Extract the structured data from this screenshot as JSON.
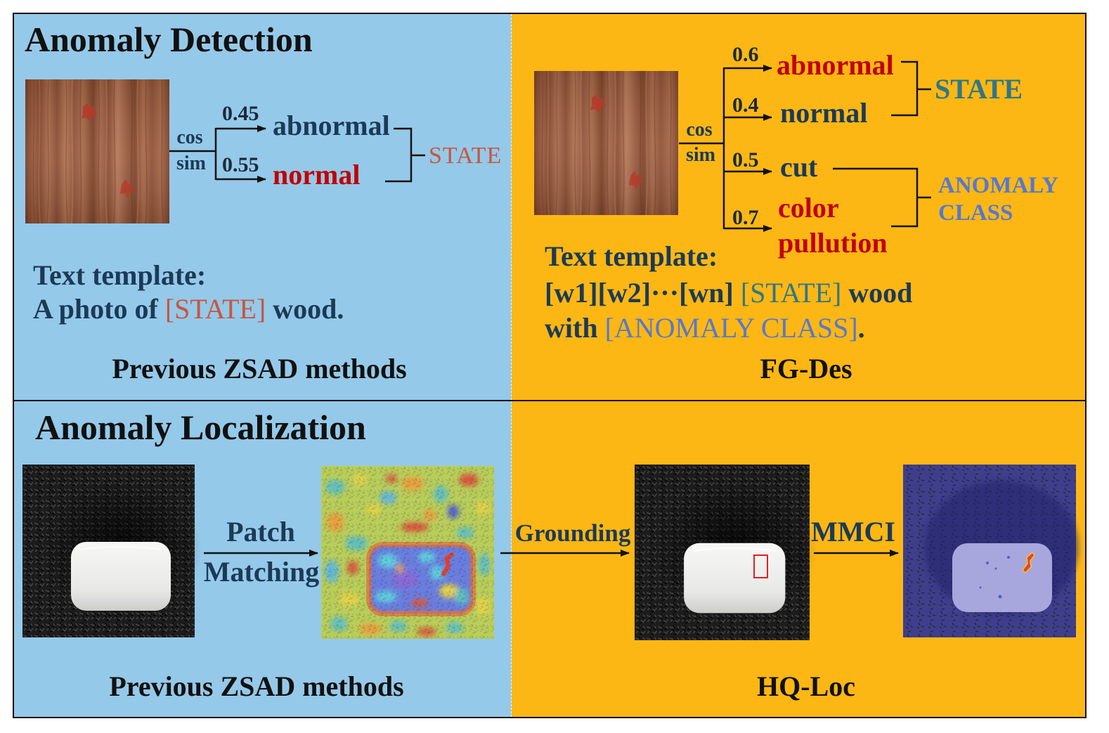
{
  "detection": {
    "title": "Anomaly Detection",
    "previous": {
      "similarity_label": [
        "cos",
        "sim"
      ],
      "branches": [
        {
          "score": "0.45",
          "label": "abnormal"
        },
        {
          "score": "0.55",
          "label": "normal"
        }
      ],
      "group_label": "STATE",
      "template": {
        "heading": "Text template:",
        "prefix": "A photo of",
        "slot": "[STATE]",
        "suffix": "wood."
      },
      "caption": "Previous ZSAD methods"
    },
    "fg_des": {
      "similarity_label": [
        "cos",
        "sim"
      ],
      "branches": [
        {
          "score": "0.6",
          "label": "abnormal"
        },
        {
          "score": "0.4",
          "label": "normal"
        },
        {
          "score": "0.5",
          "label": "cut"
        },
        {
          "score": "0.7",
          "label": [
            "color",
            "pullution"
          ]
        }
      ],
      "state_label": "STATE",
      "class_label": [
        "ANOMALY",
        "CLASS"
      ],
      "template": {
        "heading": "Text template:",
        "line1": {
          "prefix": "[w1][w2]···[wn]",
          "slot": "[STATE]",
          "suffix": "wood"
        },
        "line2": {
          "prefix": "with",
          "slot": "[ANOMALY CLASS]",
          "suffix": "."
        }
      },
      "caption": "FG-Des"
    }
  },
  "localization": {
    "title": "Anomaly Localization",
    "previous": {
      "step_label": [
        "Patch",
        "Matching"
      ],
      "caption": "Previous ZSAD methods"
    },
    "hq_loc": {
      "grounding_label": "Grounding",
      "mmci_label": "MMCI",
      "caption": "HQ-Loc"
    }
  },
  "colors": {
    "previous_bg": "#95c9e9",
    "fg_des_bg": "#fdb714",
    "text_dark": "#1b3a57",
    "highlight_red": "#c00000",
    "state_slot_previous": "#c8553d",
    "state_slot_fg_des": "#2f7787",
    "anomaly_class": "#5579cf"
  }
}
